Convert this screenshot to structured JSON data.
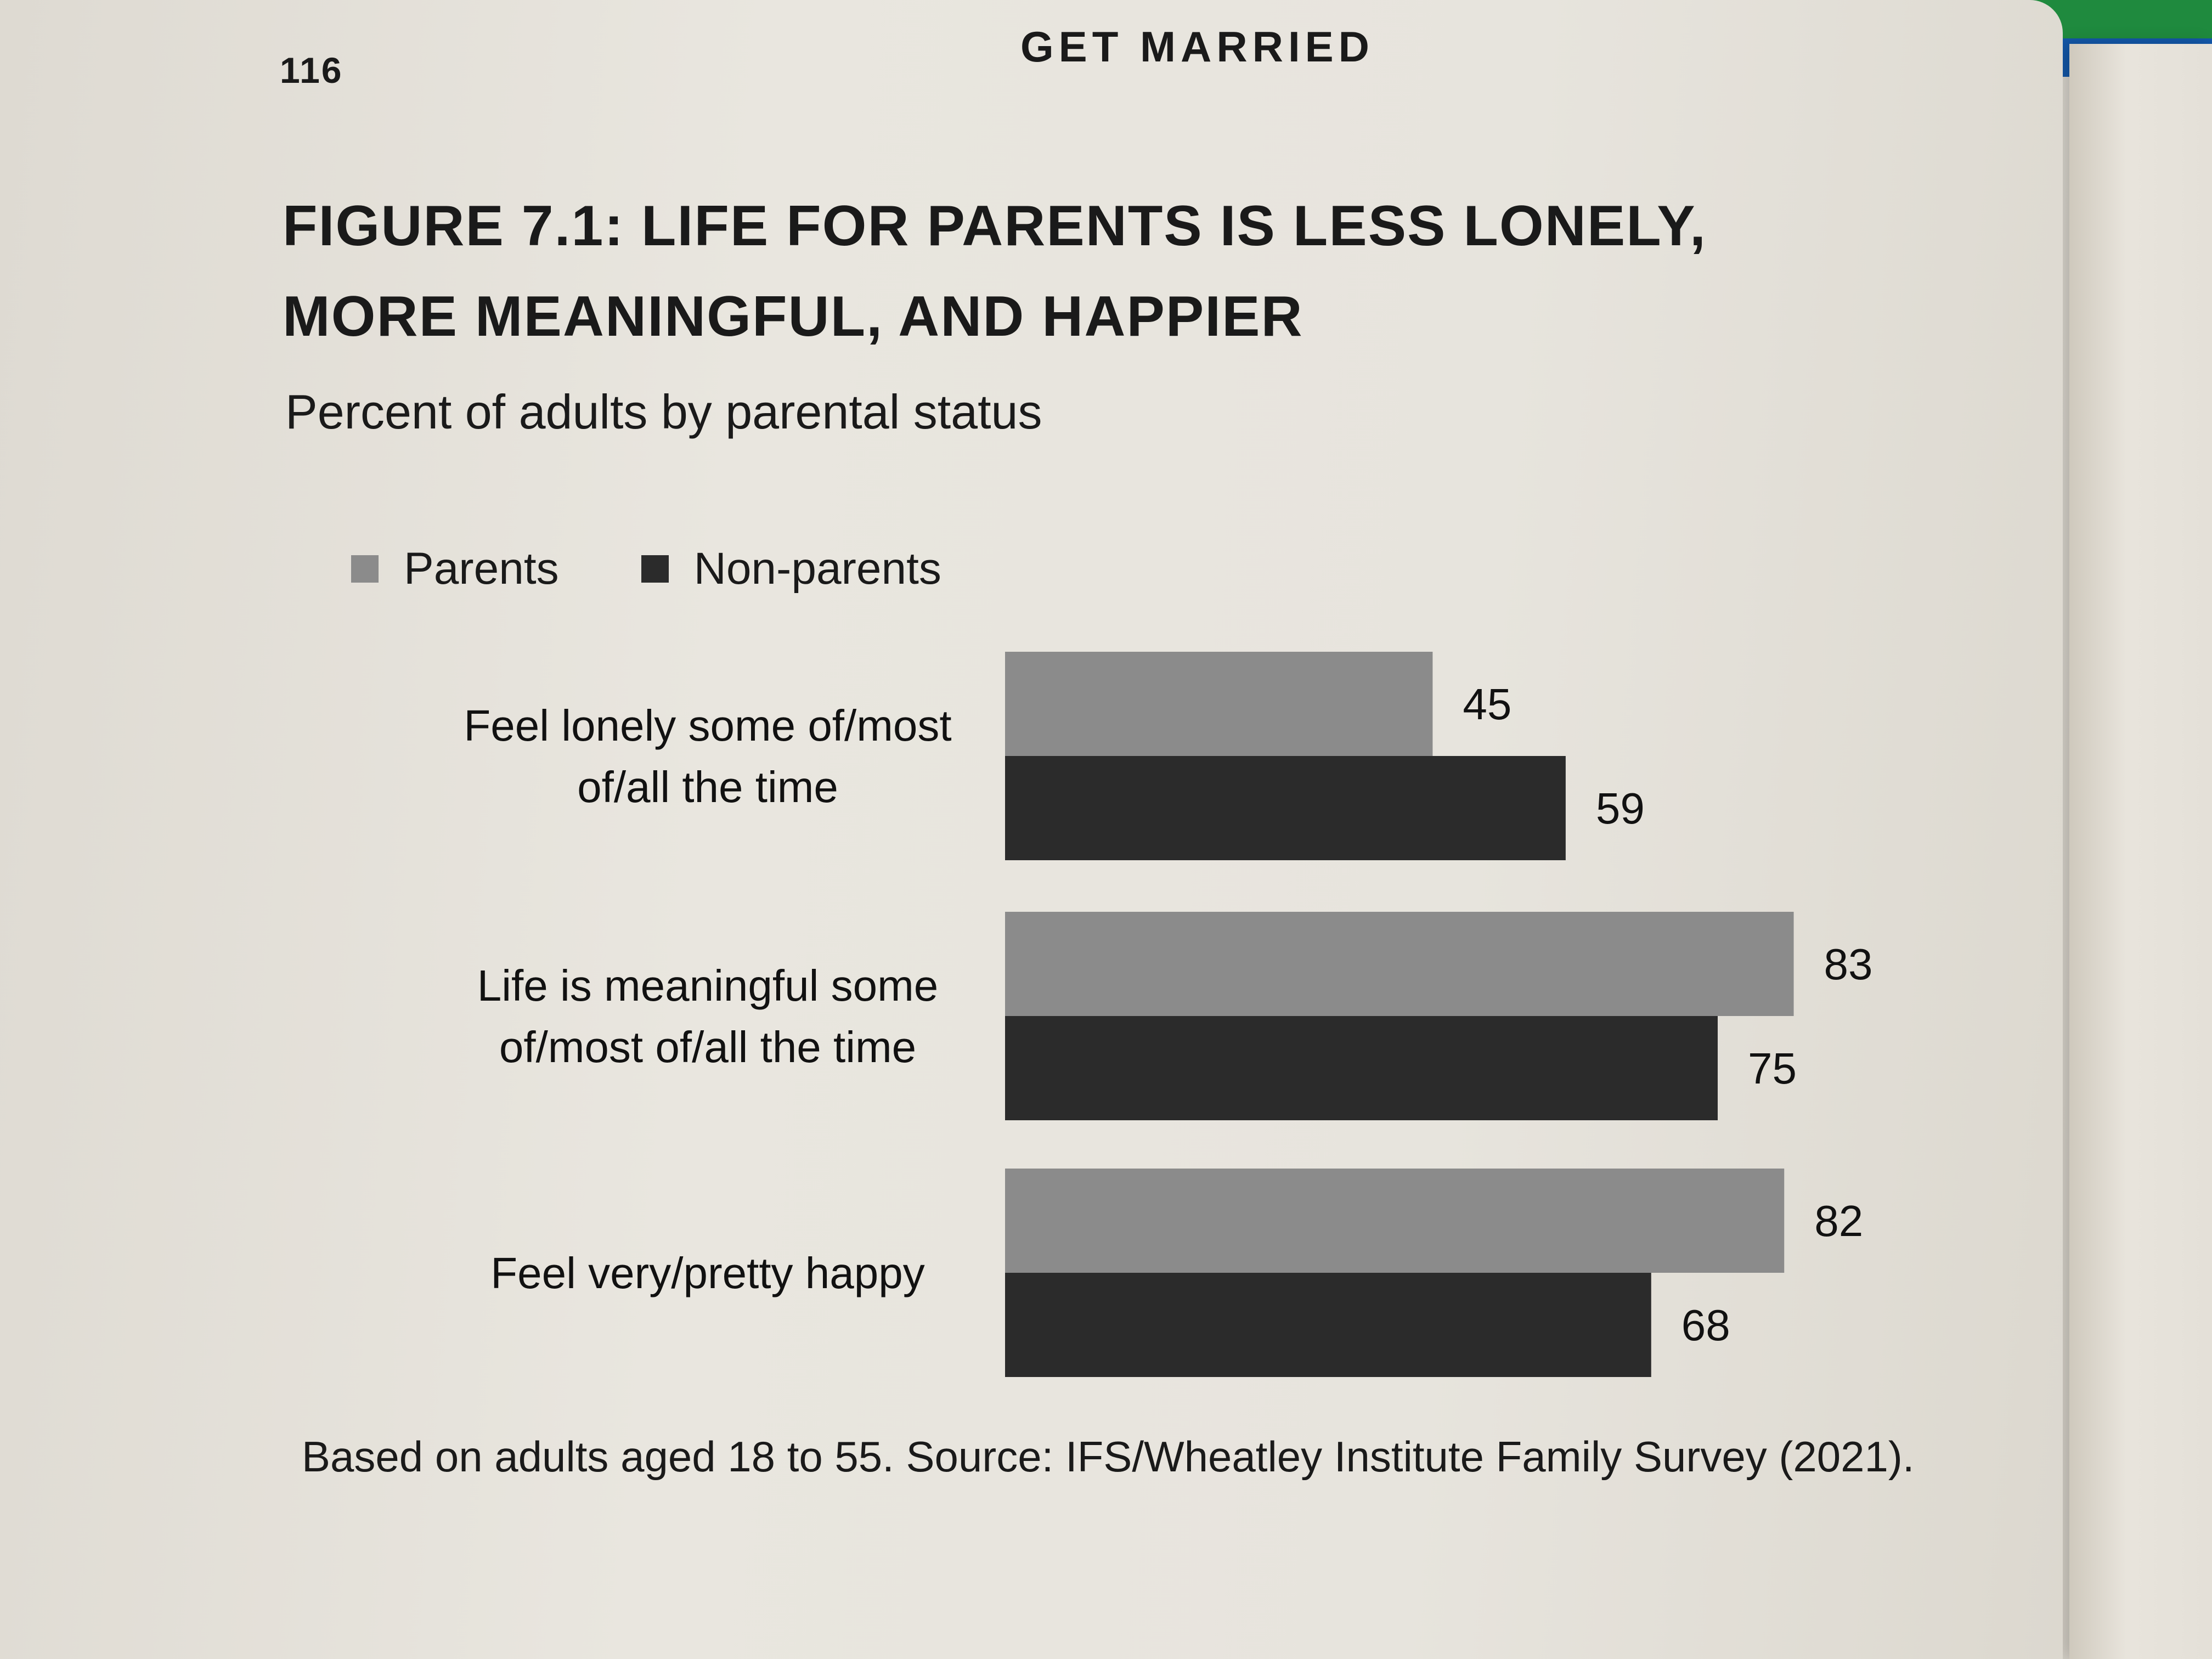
{
  "page": {
    "page_number": "116",
    "running_head": "GET MARRIED"
  },
  "figure": {
    "title_line1": "FIGURE 7.1: LIFE FOR PARENTS IS LESS LONELY,",
    "title_line2": "MORE MEANINGFUL, AND HAPPIER",
    "subtitle": "Percent of adults by parental status",
    "source_note": "Based on adults aged 18 to 55. Source: IFS/Wheatley Institute Family Survey (2021)."
  },
  "colors": {
    "parents": "#8b8b8b",
    "non_parents": "#2b2b2b"
  },
  "chart_data": {
    "type": "bar",
    "orientation": "horizontal",
    "title": "FIGURE 7.1: LIFE FOR PARENTS IS LESS LONELY, MORE MEANINGFUL, AND HAPPIER",
    "subtitle": "Percent of adults by parental status",
    "categories": [
      [
        "Feel lonely some of/most",
        "of/all the time"
      ],
      [
        "Life is meaningful some",
        "of/most of/all the time"
      ],
      [
        "Feel very/pretty happy"
      ]
    ],
    "series": [
      {
        "name": "Parents",
        "values": [
          45,
          83,
          82
        ]
      },
      {
        "name": "Non-parents",
        "values": [
          59,
          75,
          68
        ]
      }
    ],
    "xlim": [
      0,
      100
    ],
    "legend": "top-left",
    "grid": false
  }
}
